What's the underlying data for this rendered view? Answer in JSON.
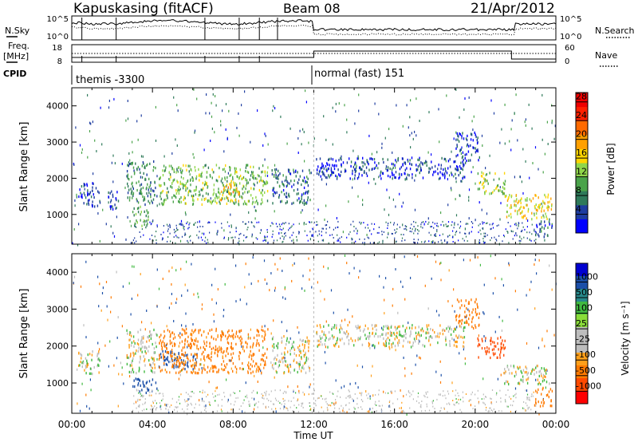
{
  "header": {
    "station": "Kapuskasing (fitACF)",
    "beam": "Beam 08",
    "date": "21/Apr/2012"
  },
  "top_panels": {
    "nsky_label": "N.Sky",
    "nsearch_label": "N.Search",
    "freq_label_1": "Freq.",
    "freq_label_2": "[MHz]",
    "nave_label": "Nave",
    "cpid_label": "CPID",
    "noise_ticks": [
      "10^5",
      "10^0"
    ],
    "freq_ticks": [
      "18",
      "8"
    ],
    "nave_ticks": [
      "60",
      "0"
    ],
    "cpid_segments": [
      {
        "start_hour": 0,
        "end_hour": 12,
        "text": "themis -3300"
      },
      {
        "start_hour": 12,
        "end_hour": 24,
        "text": "normal (fast) 151"
      }
    ]
  },
  "colors": {
    "power_scale": [
      "#0000ff",
      "#1e3da0",
      "#2f7a5a",
      "#4aa34a",
      "#8fd64a",
      "#ffd400",
      "#ffa000",
      "#ff6a00",
      "#ff2000",
      "#ee0000"
    ],
    "velocity_scale": [
      "#0000d0",
      "#1b4fa8",
      "#27888a",
      "#41b941",
      "#8adc3a",
      "#bdbdbd",
      "#bdbdbd",
      "#ff9f1a",
      "#ff7a00",
      "#ff4a00",
      "#ff0000"
    ],
    "gray": "#bdbdbd"
  },
  "chart_data": [
    {
      "type": "heatmap",
      "panel": "power",
      "xlabel": "Time UT",
      "ylabel": "Slant Range [km]",
      "xlim": [
        0,
        24
      ],
      "ylim": [
        180,
        4500
      ],
      "yticks": [
        "1000",
        "2000",
        "3000",
        "4000"
      ],
      "xticks": [
        "00:00",
        "04:00",
        "08:00",
        "12:00",
        "16:00",
        "20:00",
        "00:00"
      ],
      "colorbar": {
        "label": "Power [dB]",
        "ticks": [
          "4",
          "8",
          "12",
          "16",
          "20",
          "24",
          "28"
        ],
        "range": [
          0,
          30
        ]
      },
      "regions": [
        {
          "t0": 0.3,
          "t1": 1.4,
          "r0": 1250,
          "r1": 1900,
          "value": 4
        },
        {
          "t0": 1.7,
          "t1": 2.3,
          "r0": 1150,
          "r1": 1700,
          "value": 4
        },
        {
          "t0": 2.7,
          "t1": 4.2,
          "r0": 1300,
          "r1": 2500,
          "value": 8
        },
        {
          "t0": 3.0,
          "t1": 3.8,
          "r0": 700,
          "r1": 1300,
          "value": 10
        },
        {
          "t0": 4.3,
          "t1": 9.7,
          "r0": 1300,
          "r1": 2400,
          "value": 12
        },
        {
          "t0": 7.3,
          "t1": 8.3,
          "r0": 1400,
          "r1": 1900,
          "value": 18
        },
        {
          "t0": 9.9,
          "t1": 11.8,
          "r0": 1300,
          "r1": 2300,
          "value": 6
        },
        {
          "t0": 12.1,
          "t1": 19.5,
          "r0": 2000,
          "r1": 2600,
          "value": 4
        },
        {
          "t0": 19.0,
          "t1": 20.2,
          "r0": 2500,
          "r1": 3300,
          "value": 4
        },
        {
          "t0": 20.1,
          "t1": 21.5,
          "r0": 1600,
          "r1": 2200,
          "value": 14
        },
        {
          "t0": 21.4,
          "t1": 23.8,
          "r0": 900,
          "r1": 1600,
          "value": 16
        },
        {
          "t0": 22.9,
          "t1": 23.8,
          "r0": 400,
          "r1": 900,
          "value": 6
        }
      ]
    },
    {
      "type": "heatmap",
      "panel": "velocity",
      "xlabel": "Time UT",
      "ylabel": "Slant Range [km]",
      "xlim": [
        0,
        24
      ],
      "ylim": [
        180,
        4500
      ],
      "yticks": [
        "1000",
        "2000",
        "3000",
        "4000"
      ],
      "xticks": [
        "00:00",
        "04:00",
        "08:00",
        "12:00",
        "16:00",
        "20:00",
        "00:00"
      ],
      "colorbar": {
        "label": "Velocity [m s⁻¹]",
        "ticks": [
          "1000",
          "500",
          "100",
          "25",
          "-25",
          "-100",
          "-500",
          "-1000"
        ],
        "range": [
          -1200,
          1200
        ]
      },
      "regions": [
        {
          "t0": 0.3,
          "t1": 1.4,
          "r0": 1250,
          "r1": 1900,
          "value": 0
        },
        {
          "t0": 2.7,
          "t1": 4.2,
          "r0": 1300,
          "r1": 2500,
          "value": 0
        },
        {
          "t0": 3.0,
          "t1": 4.2,
          "r0": 750,
          "r1": 1150,
          "value": 200
        },
        {
          "t0": 4.3,
          "t1": 6.2,
          "r0": 1400,
          "r1": 1900,
          "value": 200
        },
        {
          "t0": 4.3,
          "t1": 9.7,
          "r0": 1300,
          "r1": 2500,
          "value": -150
        },
        {
          "t0": 9.9,
          "t1": 11.8,
          "r0": 1300,
          "r1": 2300,
          "value": 0
        },
        {
          "t0": 12.1,
          "t1": 19.5,
          "r0": 2000,
          "r1": 2600,
          "value": 0
        },
        {
          "t0": 19.0,
          "t1": 20.2,
          "r0": 2500,
          "r1": 3300,
          "value": -200
        },
        {
          "t0": 20.1,
          "t1": 21.5,
          "r0": 1700,
          "r1": 2300,
          "value": -900
        },
        {
          "t0": 21.4,
          "t1": 23.8,
          "r0": 1000,
          "r1": 1500,
          "value": 0
        },
        {
          "t0": 22.9,
          "t1": 23.8,
          "r0": 400,
          "r1": 900,
          "value": -200
        }
      ]
    }
  ]
}
